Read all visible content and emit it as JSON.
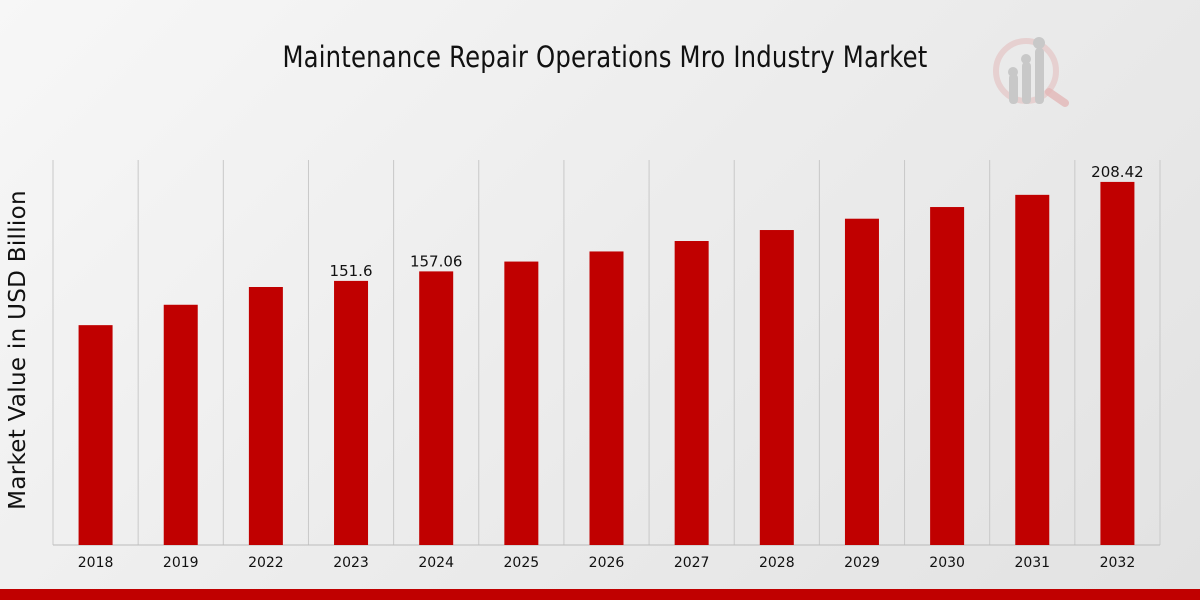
{
  "colors": {
    "bar": "#c00000",
    "grid": "#c8c8c8",
    "axis": "#bbbbbb",
    "accent_bar": "#c00000",
    "logo": "#c8c8c8",
    "logo_accent": "#e4b8b8"
  },
  "logo_icon": "magnifier-bar-chart-icon",
  "chart_data": {
    "type": "bar",
    "title": "Maintenance Repair Operations Mro Industry Market",
    "xlabel": "",
    "ylabel": "Market Value in USD Billion",
    "categories": [
      "2018",
      "2019",
      "2022",
      "2023",
      "2024",
      "2025",
      "2026",
      "2027",
      "2028",
      "2029",
      "2030",
      "2031",
      "2032"
    ],
    "values": [
      126.2,
      137.9,
      148.1,
      151.6,
      157.06,
      162.7,
      168.5,
      174.5,
      180.8,
      187.3,
      194.0,
      201.0,
      208.42
    ],
    "data_labels": [
      "",
      "",
      "",
      "151.6",
      "157.06",
      "",
      "",
      "",
      "",
      "",
      "",
      "",
      "208.42"
    ],
    "ylim": [
      0,
      221
    ],
    "grid": true,
    "grid_axis": "x",
    "legend": "none"
  }
}
